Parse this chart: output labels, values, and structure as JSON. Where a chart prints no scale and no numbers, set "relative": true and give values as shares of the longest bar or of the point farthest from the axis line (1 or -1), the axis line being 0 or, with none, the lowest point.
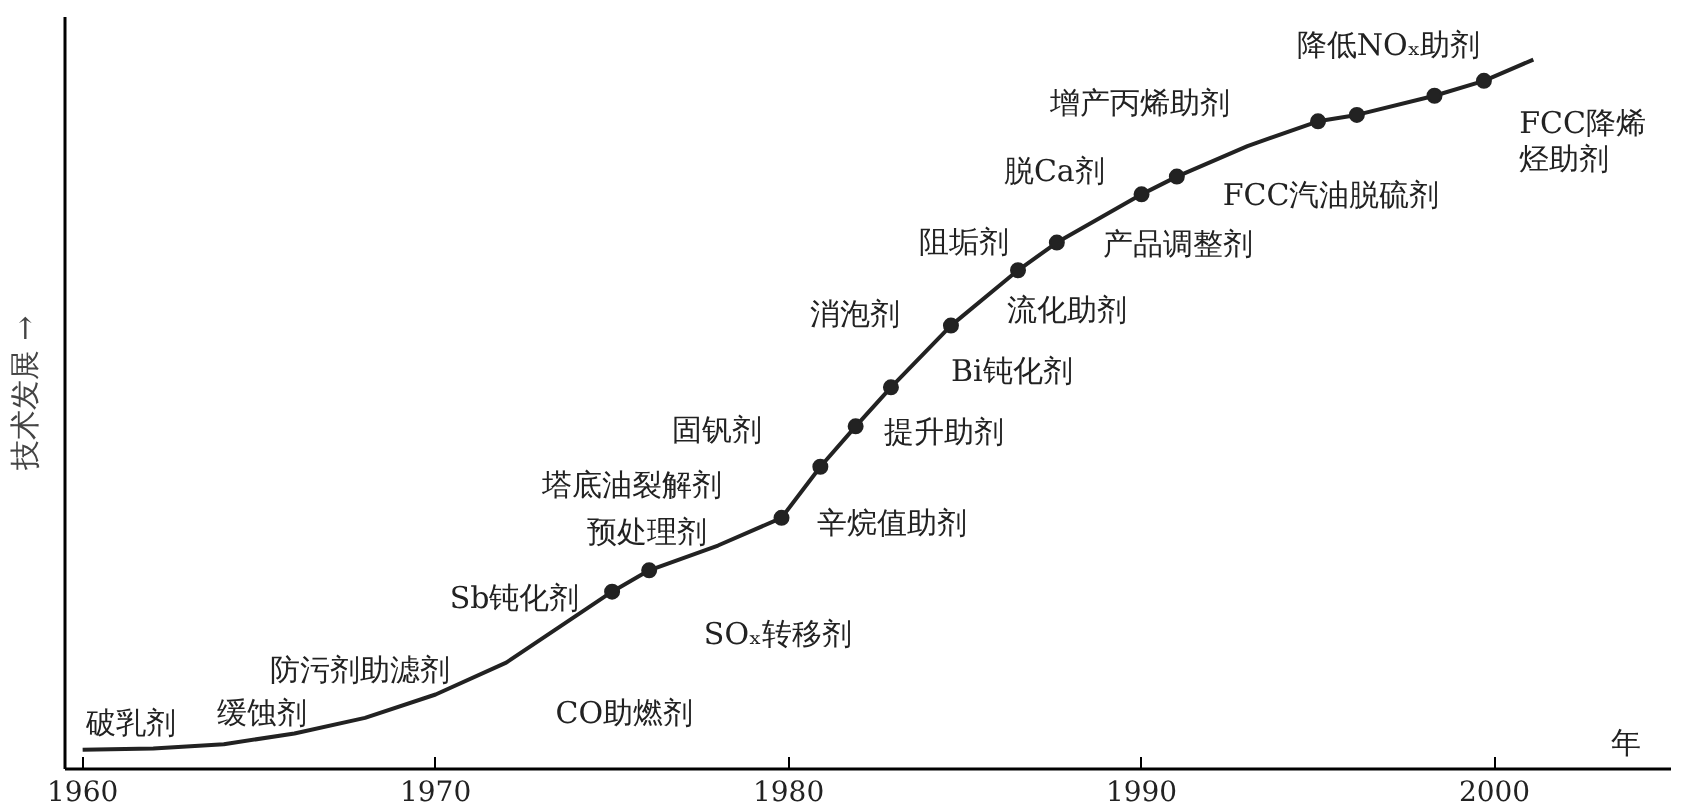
{
  "chart_data": {
    "type": "line",
    "relative": true,
    "ylabel": "技术发展 →",
    "xlabel": "年",
    "xlim": [
      1959.5,
      2005
    ],
    "xticks": [
      1960,
      1970,
      1980,
      1990,
      2000
    ],
    "grid": false,
    "series": [
      {
        "marker": "none",
        "color": "#222222",
        "x": [
          1960,
          1962,
          1964,
          1966,
          1968,
          1970,
          1972,
          1973.5,
          1975.0,
          1976.05,
          1978,
          1979.8,
          1980.9,
          1981.9,
          1982.9,
          1984.6,
          1986.5,
          1987.6,
          1990.0,
          1991.0,
          1993,
          1995.0,
          1996.1,
          1998.3,
          1999.7,
          2001.1
        ],
        "values": [
          0.027,
          0.029,
          0.035,
          0.05,
          0.072,
          0.105,
          0.15,
          0.2,
          0.25,
          0.28,
          0.315,
          0.354,
          0.426,
          0.483,
          0.538,
          0.625,
          0.703,
          0.742,
          0.81,
          0.835,
          0.878,
          0.913,
          0.922,
          0.949,
          0.97,
          1.0
        ]
      },
      {
        "type": "scatter",
        "marker": "circle",
        "color": "#222222",
        "x": [
          1975.0,
          1976.05,
          1979.8,
          1980.9,
          1981.9,
          1982.9,
          1984.6,
          1986.5,
          1987.6,
          1990.0,
          1991.0,
          1995.0,
          1996.1,
          1998.3,
          1999.7
        ],
        "values": [
          0.25,
          0.28,
          0.354,
          0.426,
          0.483,
          0.538,
          0.625,
          0.703,
          0.742,
          0.81,
          0.835,
          0.913,
          0.922,
          0.949,
          0.97
        ]
      }
    ],
    "annotations": [
      "破乳剂",
      "缓蚀剂",
      "防污剂助滤剂",
      "Sb钝化剂",
      "CO助燃剂",
      "SOₓ转移剂",
      "预处理剂",
      "塔底油裂解剂",
      "固钒剂",
      "辛烷值助剂",
      "提升助剂",
      "Bi钝化剂",
      "消泡剂",
      "流化助剂",
      "阻垢剂",
      "产品调整剂",
      "脱Ca剂",
      "增产丙烯助剂",
      "FCC汽油脱硫剂",
      "降低NOₓ助剂",
      "FCC降烯烃助剂"
    ]
  }
}
